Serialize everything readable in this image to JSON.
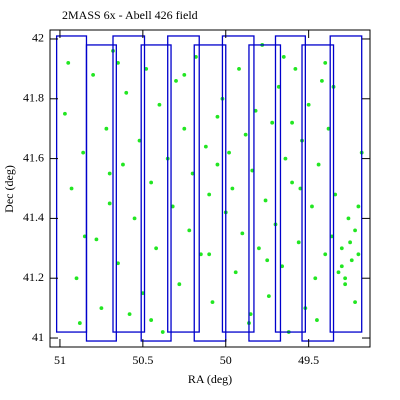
{
  "chart_data": {
    "type": "scatter",
    "title": "2MASS 6x - Abell 426 field",
    "xlabel": "RA (deg)",
    "ylabel": "Dec (deg)",
    "xlim": [
      51.06,
      49.13
    ],
    "ylim": [
      40.97,
      42.03
    ],
    "xticks": [
      51,
      50.5,
      50,
      49.5
    ],
    "yticks": [
      41,
      41.2,
      41.4,
      41.6,
      41.8,
      42
    ],
    "color": "#22e622",
    "footprint_color": "#0000cc",
    "footprints": [
      {
        "ra": [
          51.02,
          50.84
        ],
        "dec": [
          41.02,
          42.01
        ]
      },
      {
        "ra": [
          50.84,
          50.66
        ],
        "dec": [
          40.99,
          41.98
        ]
      },
      {
        "ra": [
          50.68,
          50.49
        ],
        "dec": [
          41.02,
          42.01
        ]
      },
      {
        "ra": [
          50.51,
          50.33
        ],
        "dec": [
          40.99,
          41.98
        ]
      },
      {
        "ra": [
          50.35,
          50.16
        ],
        "dec": [
          41.02,
          42.01
        ]
      },
      {
        "ra": [
          50.19,
          50.0
        ],
        "dec": [
          40.99,
          41.98
        ]
      },
      {
        "ra": [
          50.02,
          49.83
        ],
        "dec": [
          41.02,
          42.01
        ]
      },
      {
        "ra": [
          49.86,
          49.67
        ],
        "dec": [
          40.99,
          41.98
        ]
      },
      {
        "ra": [
          49.7,
          49.52
        ],
        "dec": [
          41.02,
          42.01
        ]
      },
      {
        "ra": [
          49.54,
          49.35
        ],
        "dec": [
          40.99,
          41.98
        ]
      },
      {
        "ra": [
          49.37,
          49.18
        ],
        "dec": [
          41.02,
          42.01
        ]
      }
    ],
    "x": [
      50.95,
      50.93,
      50.9,
      50.97,
      50.88,
      50.86,
      50.8,
      50.78,
      50.75,
      50.72,
      50.7,
      50.68,
      50.65,
      50.62,
      50.6,
      50.58,
      50.55,
      50.52,
      50.5,
      50.48,
      50.45,
      50.42,
      50.4,
      50.38,
      50.35,
      50.32,
      50.3,
      50.28,
      50.25,
      50.22,
      50.2,
      50.18,
      50.15,
      50.12,
      50.1,
      50.08,
      50.05,
      50.02,
      50.0,
      49.98,
      49.96,
      49.94,
      49.92,
      49.9,
      49.88,
      49.86,
      49.84,
      49.82,
      49.8,
      49.78,
      49.76,
      49.74,
      49.72,
      49.7,
      49.68,
      49.66,
      49.64,
      49.62,
      49.6,
      49.58,
      49.56,
      49.54,
      49.52,
      49.5,
      49.48,
      49.46,
      49.44,
      49.42,
      49.4,
      49.38,
      49.36,
      49.34,
      49.32,
      49.3,
      49.28,
      49.26,
      49.24,
      49.22,
      49.2,
      49.18,
      49.3,
      49.25,
      49.22,
      49.35,
      49.45,
      49.55,
      49.65,
      49.75,
      49.85,
      50.05,
      50.25,
      50.45,
      50.65,
      50.85,
      49.2,
      49.28,
      49.4,
      49.6,
      50.1,
      50.7
    ],
    "values": [
      41.92,
      41.5,
      41.2,
      41.75,
      41.05,
      41.62,
      41.88,
      41.33,
      41.1,
      41.7,
      41.45,
      41.96,
      41.25,
      41.58,
      41.82,
      41.08,
      41.4,
      41.66,
      41.15,
      41.9,
      41.52,
      41.3,
      41.78,
      41.02,
      41.6,
      41.44,
      41.86,
      41.18,
      41.7,
      41.36,
      41.55,
      41.94,
      41.28,
      41.64,
      41.48,
      41.12,
      41.58,
      41.8,
      41.42,
      41.62,
      41.5,
      41.22,
      41.9,
      41.35,
      41.68,
      41.05,
      41.56,
      41.76,
      41.3,
      41.98,
      41.46,
      41.14,
      41.72,
      41.38,
      41.84,
      41.24,
      41.6,
      41.02,
      41.52,
      41.9,
      41.32,
      41.66,
      41.1,
      41.78,
      41.44,
      41.2,
      41.58,
      41.86,
      41.28,
      41.7,
      41.34,
      41.48,
      41.22,
      41.3,
      41.18,
      41.4,
      41.26,
      41.36,
      41.28,
      41.62,
      41.24,
      41.32,
      41.12,
      41.84,
      41.06,
      41.5,
      41.94,
      41.26,
      41.08,
      41.74,
      41.88,
      41.06,
      41.92,
      41.34,
      41.44,
      41.2,
      41.92,
      41.72,
      41.28,
      41.55
    ]
  }
}
